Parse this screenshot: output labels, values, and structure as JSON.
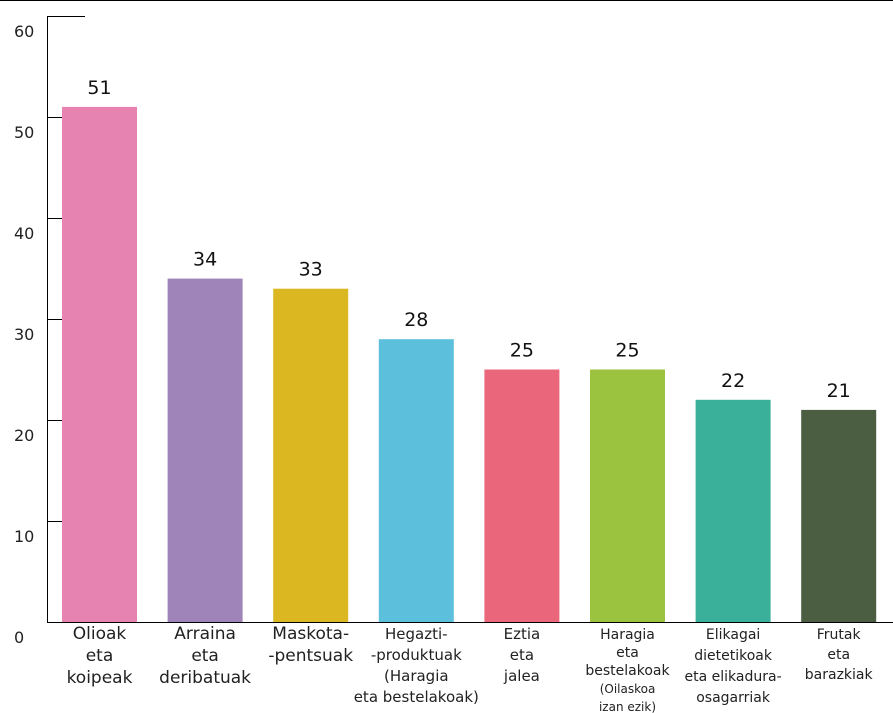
{
  "chart_data": {
    "type": "bar",
    "ylim": [
      0,
      60
    ],
    "yticks": [
      0,
      10,
      20,
      30,
      40,
      50,
      60
    ],
    "grid": false,
    "legend": "none",
    "categories": [
      [
        "Olioak",
        "eta",
        "koipeak"
      ],
      [
        "Arraina",
        "eta",
        "deribatuak"
      ],
      [
        "Maskota-",
        "-pentsuak"
      ],
      [
        "Hegazti-",
        "-produktuak",
        "(Haragia",
        "eta bestelakoak)"
      ],
      [
        "Eztia",
        "eta",
        "jalea"
      ],
      [
        "Haragia",
        "eta",
        "bestelakoak",
        "(Oilaskoa",
        "izan ezik)"
      ],
      [
        "Elikagai",
        "dietetikoak",
        "eta elikadura-",
        "osagarriak"
      ],
      [
        "Frutak",
        "eta",
        "barazkiak"
      ]
    ],
    "values": [
      51,
      34,
      33,
      28,
      25,
      25,
      22,
      21
    ],
    "colors": [
      "#e683b0",
      "#9f84ba",
      "#dbb721",
      "#5cbfdb",
      "#e9667b",
      "#9bc33f",
      "#3ab09b",
      "#4b5e42"
    ]
  }
}
